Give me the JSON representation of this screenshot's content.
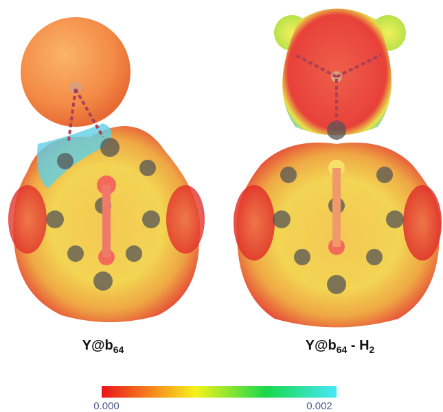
{
  "figure": {
    "panels": [
      {
        "label": [
          {
            "text": "Y@b",
            "sub": false
          },
          {
            "text": "64",
            "sub": true
          }
        ]
      },
      {
        "label": [
          {
            "text": "Y@b",
            "sub": false
          },
          {
            "text": "64",
            "sub": true
          },
          {
            "text": " - H",
            "sub": false
          },
          {
            "text": "2",
            "sub": true
          }
        ]
      }
    ],
    "colorbar": {
      "min_label": "0.000",
      "max_label": "0.002"
    }
  }
}
